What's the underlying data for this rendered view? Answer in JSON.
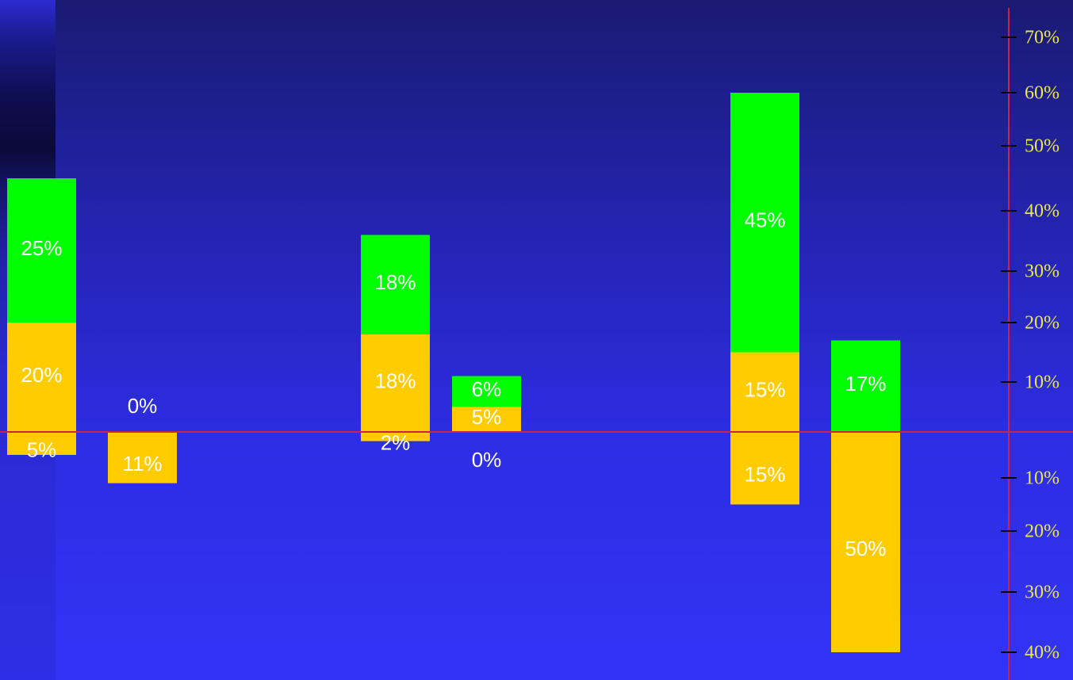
{
  "chart_data": {
    "type": "bar",
    "stacked": true,
    "diverging": true,
    "colors": {
      "green": "#00ff00",
      "gold": "#ffcc00",
      "zero_line": "#cc2244",
      "axis_line": "#cc2244",
      "tick_mark": "#000000",
      "tick_label": "#e8e84a",
      "bar_label": "#ffffff"
    },
    "y_ticks_positive": [
      "10%",
      "20%",
      "30%",
      "40%",
      "50%",
      "60%",
      "70%"
    ],
    "y_ticks_negative": [
      "10%",
      "20%",
      "30%",
      "40%"
    ],
    "ylim": [
      -40,
      70
    ],
    "grid": false,
    "bars": [
      {
        "segments": [
          {
            "color": "gold",
            "value": 20,
            "label": "20%"
          },
          {
            "color": "green",
            "value": 25,
            "label": "25%"
          }
        ],
        "below": [
          {
            "color": "gold",
            "value": 5,
            "label": "5%"
          }
        ]
      },
      {
        "segments": [],
        "top_label": "0%",
        "below": [
          {
            "color": "gold",
            "value": 11,
            "label": "11%"
          }
        ]
      },
      {
        "segments": [
          {
            "color": "gold",
            "value": 18,
            "label": "18%"
          },
          {
            "color": "green",
            "value": 18,
            "label": "18%"
          }
        ],
        "below": [
          {
            "color": "gold",
            "value": 2,
            "label": "2%"
          }
        ]
      },
      {
        "segments": [
          {
            "color": "gold",
            "value": 5,
            "label": "5%"
          },
          {
            "color": "green",
            "value": 6,
            "label": "6%"
          }
        ],
        "below": [],
        "bottom_label": "0%"
      },
      {
        "segments": [
          {
            "color": "gold",
            "value": 15,
            "label": "15%"
          },
          {
            "color": "green",
            "value": 45,
            "label": "45%"
          }
        ],
        "below": [
          {
            "color": "gold",
            "value": 15,
            "label": "15%"
          }
        ]
      },
      {
        "segments": [
          {
            "color": "green",
            "value": 17,
            "label": "17%"
          }
        ],
        "below": [
          {
            "color": "gold",
            "value": 50,
            "label": "50%"
          }
        ]
      }
    ]
  }
}
